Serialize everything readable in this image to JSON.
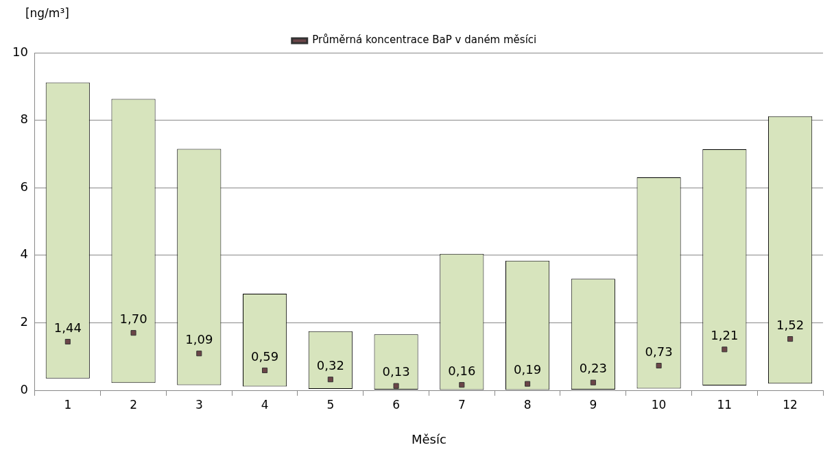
{
  "chart_data": {
    "type": "bar",
    "ylabel": "[ng/m³]",
    "xlabel": "Měsíc",
    "categories": [
      "1",
      "2",
      "3",
      "4",
      "5",
      "6",
      "7",
      "8",
      "9",
      "10",
      "11",
      "12"
    ],
    "series": [
      {
        "type": "bar",
        "color": "#d7e4bd",
        "base": [
          0.35,
          0.22,
          0.15,
          0.11,
          0.04,
          0.02,
          0.01,
          0.01,
          0.02,
          0.05,
          0.14,
          0.2
        ],
        "values": [
          8.77,
          8.41,
          7.0,
          2.75,
          1.71,
          1.64,
          4.03,
          3.83,
          3.28,
          6.26,
          7.0,
          7.92
        ]
      },
      {
        "type": "scatter",
        "name": "Průměrná koncentrace BaP v daném měsíci",
        "color": "#6b4548",
        "values": [
          1.44,
          1.7,
          1.09,
          0.59,
          0.32,
          0.13,
          0.16,
          0.19,
          0.23,
          0.73,
          1.21,
          1.52
        ],
        "value_labels": [
          "1,44",
          "1,70",
          "1,09",
          "0,59",
          "0,32",
          "0,13",
          "0,16",
          "0,19",
          "0,23",
          "0,73",
          "1,21",
          "1,52"
        ]
      }
    ],
    "ylim": [
      0,
      10
    ],
    "yticks": [
      0,
      2,
      4,
      6,
      8,
      10
    ],
    "grid": "y",
    "legend": "top"
  }
}
